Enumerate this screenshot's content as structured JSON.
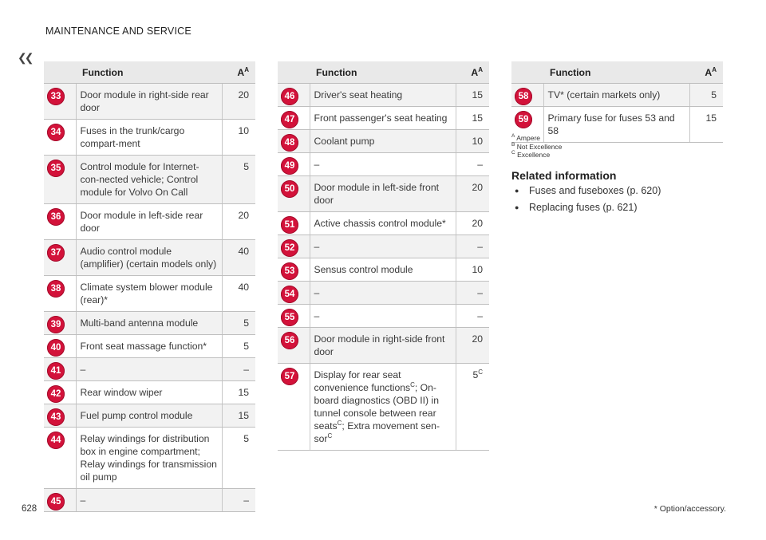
{
  "header": {
    "title": "MAINTENANCE AND SERVICE",
    "back_icon": "double-chevron-left-icon"
  },
  "columns": {
    "function": "Function",
    "ampere": "A",
    "ampere_sup": "A"
  },
  "tables": [
    {
      "rows": [
        {
          "num": "33",
          "func": "Door module in right-side rear door",
          "amp": "20"
        },
        {
          "num": "34",
          "func": "Fuses in the trunk/cargo compart-ment",
          "amp": "10"
        },
        {
          "num": "35",
          "func": "Control module for Internet-con-nected vehicle; Control module for Volvo On Call",
          "amp": "5"
        },
        {
          "num": "36",
          "func": "Door module in left-side rear door",
          "amp": "20"
        },
        {
          "num": "37",
          "func": "Audio control module (amplifier) (certain models only)",
          "amp": "40"
        },
        {
          "num": "38",
          "func": "Climate system blower module (rear)*",
          "amp": "40"
        },
        {
          "num": "39",
          "func": "Multi-band antenna module",
          "amp": "5"
        },
        {
          "num": "40",
          "func": "Front seat massage function*",
          "amp": "5"
        },
        {
          "num": "41",
          "func": "–",
          "amp": "–"
        },
        {
          "num": "42",
          "func": "Rear window wiper",
          "amp": "15"
        },
        {
          "num": "43",
          "func": "Fuel pump control module",
          "amp": "15"
        },
        {
          "num": "44",
          "func": "Relay windings for distribution box in engine compartment; Relay windings for transmission oil pump",
          "amp": "5"
        },
        {
          "num": "45",
          "func": "–",
          "amp": "–"
        }
      ]
    },
    {
      "rows": [
        {
          "num": "46",
          "func": "Driver's seat heating",
          "amp": "15"
        },
        {
          "num": "47",
          "func": "Front passenger's seat heating",
          "amp": "15"
        },
        {
          "num": "48",
          "func": "Coolant pump",
          "amp": "10"
        },
        {
          "num": "49",
          "func": "–",
          "amp": "–"
        },
        {
          "num": "50",
          "func": "Door module in left-side front door",
          "amp": "20"
        },
        {
          "num": "51",
          "func": "Active chassis control module*",
          "amp": "20"
        },
        {
          "num": "52",
          "func": "–",
          "amp": "–"
        },
        {
          "num": "53",
          "func": "Sensus control module",
          "amp": "10"
        },
        {
          "num": "54",
          "func": "–",
          "amp": "–"
        },
        {
          "num": "55",
          "func": "–",
          "amp": "–"
        },
        {
          "num": "56",
          "func": "Door module in right-side front door",
          "amp": "20"
        },
        {
          "num": "57",
          "func_parts": [
            "Display for rear seat convenience functions",
            "; On-board diagnostics (OBD II) in tunnel console between rear seats",
            "; Extra movement sen-sor",
            ""
          ],
          "func_sup": "C",
          "amp": "5",
          "amp_sup": "C"
        }
      ]
    },
    {
      "rows": [
        {
          "num": "58",
          "func": "TV* (certain markets only)",
          "amp": "5"
        },
        {
          "num": "59",
          "func": "Primary fuse for fuses 53 and 58",
          "amp": "15"
        }
      ]
    }
  ],
  "notes": [
    {
      "mark": "A",
      "text": "Ampere"
    },
    {
      "mark": "B",
      "text": "Not Excellence"
    },
    {
      "mark": "C",
      "text": "Excellence"
    }
  ],
  "related": {
    "title": "Related information",
    "items": [
      "Fuses and fuseboxes (p. 620)",
      "Replacing fuses (p. 621)"
    ]
  },
  "footer": {
    "page": "628",
    "footnote": "* Option/accessory."
  },
  "colors": {
    "badge": "#d3123a",
    "header_bg": "#e9e9e9",
    "row_alt_bg": "#f2f2f2"
  }
}
